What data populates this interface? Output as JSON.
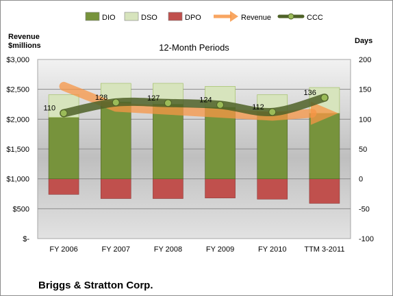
{
  "chart_data": {
    "type": "bar",
    "title": "12-Month Periods",
    "company": "Briggs & Stratton Corp.",
    "left_axis_label": [
      "Revenue",
      "$millions"
    ],
    "right_axis_label": "Days",
    "categories": [
      "FY 2006",
      "FY 2007",
      "FY 2008",
      "FY 2009",
      "FY 2010",
      "TTM 3-2011"
    ],
    "left_axis": {
      "min": 0,
      "max": 3000,
      "step": 500,
      "tick_labels": [
        "$-",
        "$500",
        "$1,000",
        "$1,500",
        "$2,000",
        "$2,500",
        "$3,000"
      ]
    },
    "right_axis": {
      "min": -100,
      "max": 200,
      "step": 50,
      "tick_labels": [
        "-100",
        "-50",
        "0",
        "50",
        "100",
        "150",
        "200"
      ]
    },
    "grid": true,
    "legend_position": "top",
    "series": [
      {
        "name": "DIO",
        "kind": "bar",
        "axis": "days",
        "color": "#77933C",
        "values": [
          103,
          129,
          125,
          120,
          112,
          110
        ]
      },
      {
        "name": "DSO",
        "kind": "bar",
        "axis": "days",
        "color": "#D7E4BD",
        "values": [
          38,
          31,
          35,
          35,
          29,
          43
        ]
      },
      {
        "name": "DPO",
        "kind": "bar",
        "axis": "days",
        "color": "#C0504D",
        "values": [
          -26,
          -33,
          -33,
          -32,
          -34,
          -41
        ]
      },
      {
        "name": "Revenue",
        "kind": "arrow",
        "axis": "revenue",
        "color": "#F79646",
        "values": [
          2550,
          2200,
          2150,
          2100,
          2050,
          2100
        ]
      },
      {
        "name": "CCC",
        "kind": "line",
        "axis": "days",
        "color": "#4F6228",
        "values": [
          110,
          128,
          127,
          124,
          112,
          136
        ]
      }
    ],
    "ccc_labels": [
      "110",
      "128",
      "127",
      "124",
      "112",
      "136"
    ]
  }
}
